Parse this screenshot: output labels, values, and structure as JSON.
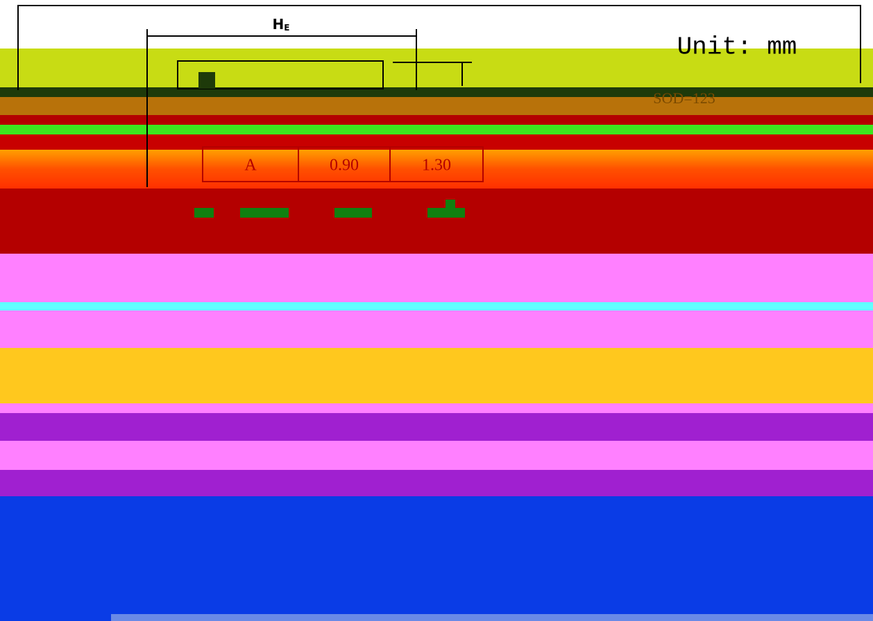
{
  "dimension": {
    "symbol": "H",
    "subscript": "E"
  },
  "unit": "Unit: mm",
  "package": "SOD=123",
  "table": {
    "header": "A",
    "cells": [
      "0.90",
      "1.30"
    ]
  }
}
